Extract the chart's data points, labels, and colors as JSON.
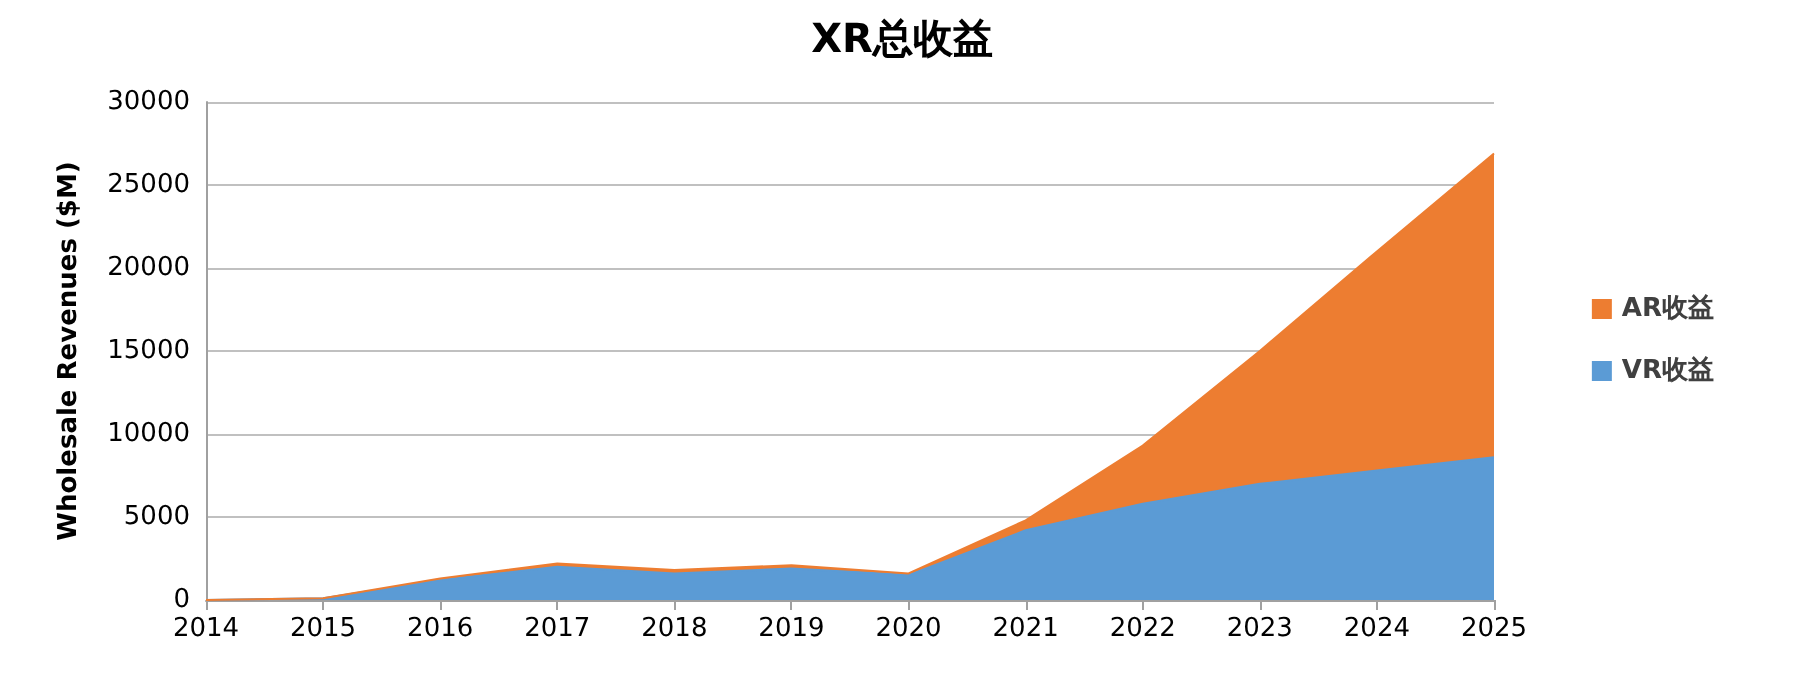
{
  "chart_data": {
    "type": "area",
    "title": "XR总收益",
    "ylabel": "Wholesale Revenues ($M)",
    "categories": [
      "2014",
      "2015",
      "2016",
      "2017",
      "2018",
      "2019",
      "2020",
      "2021",
      "2022",
      "2023",
      "2024",
      "2025"
    ],
    "stacked": true,
    "series": [
      {
        "name": "VR收益",
        "color": "#5b9bd5",
        "values": [
          0,
          100,
          1200,
          2000,
          1600,
          1900,
          1500,
          4200,
          5800,
          7000,
          7800,
          8600
        ]
      },
      {
        "name": "AR收益",
        "color": "#ed7d31",
        "values": [
          0,
          0,
          100,
          200,
          200,
          200,
          100,
          600,
          3500,
          8000,
          13200,
          18300
        ]
      }
    ],
    "ylim": [
      0,
      30000
    ],
    "yticks": [
      0,
      5000,
      10000,
      15000,
      20000,
      25000,
      30000
    ],
    "grid": "y",
    "legend": "right"
  }
}
